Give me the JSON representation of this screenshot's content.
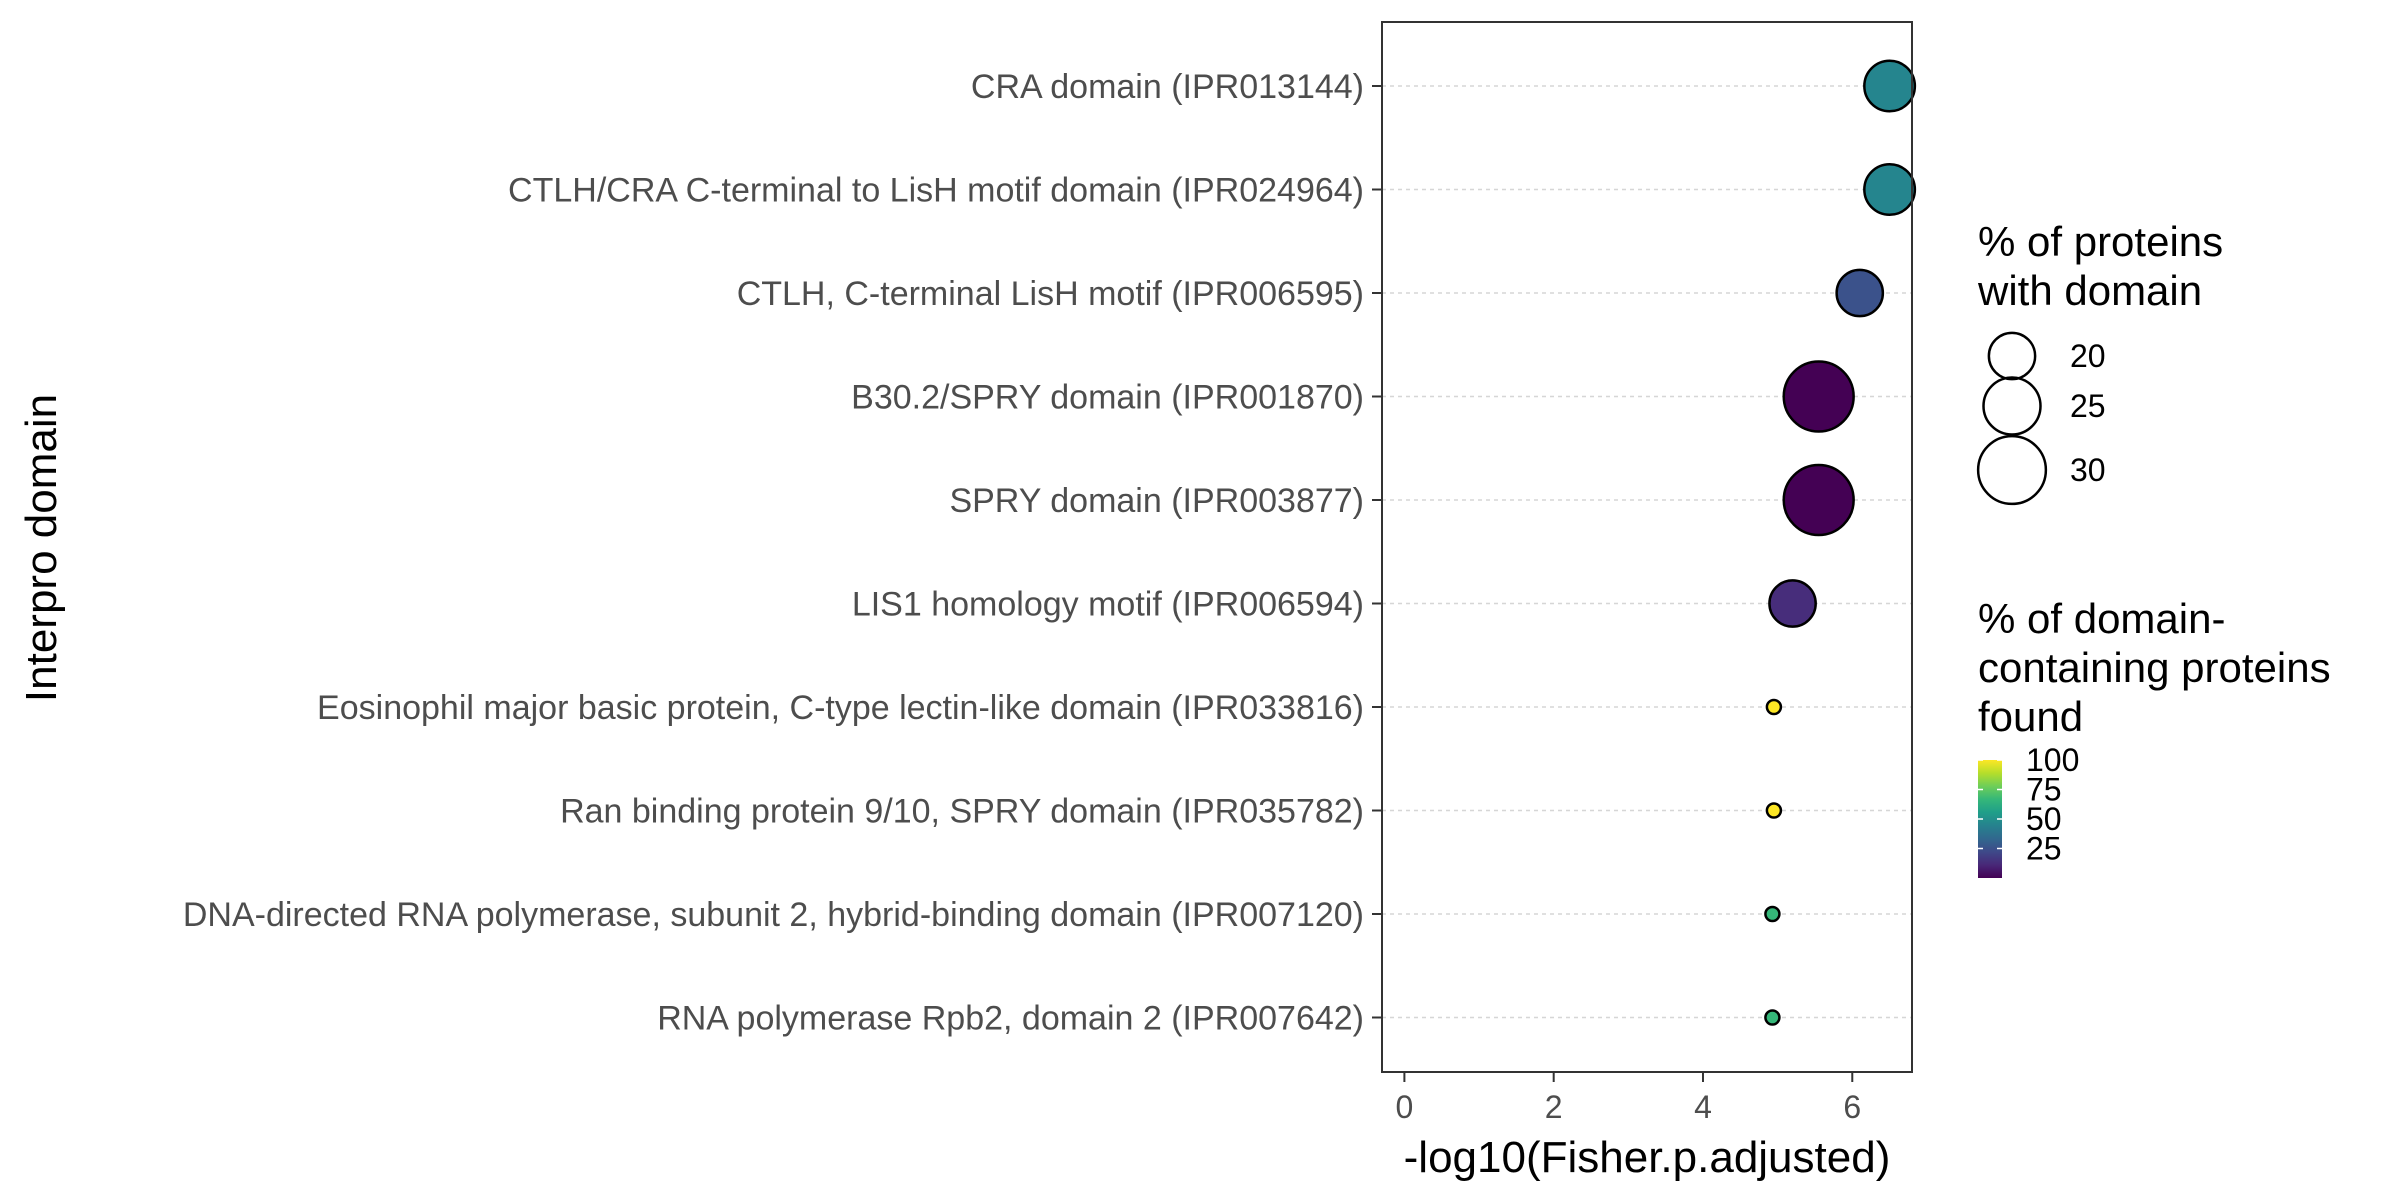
{
  "chart_data": {
    "type": "scatter",
    "xlabel": "-log10(Fisher.p.adjusted)",
    "ylabel": "Interpro domain",
    "xlim": [
      -0.3,
      6.8
    ],
    "xticks": [
      0,
      2,
      4,
      6
    ],
    "grid": "horizontal dashed",
    "categories": [
      "CRA domain (IPR013144)",
      "CTLH/CRA C-terminal to LisH motif domain (IPR024964)",
      "CTLH, C-terminal LisH motif (IPR006595)",
      "B30.2/SPRY domain (IPR001870)",
      "SPRY domain (IPR003877)",
      "LIS1 homology motif (IPR006594)",
      "Eosinophil major basic protein, C-type lectin-like domain (IPR033816)",
      "Ran binding protein 9/10, SPRY domain (IPR035782)",
      "DNA-directed RNA polymerase, subunit 2, hybrid-binding domain (IPR007120)",
      "RNA polymerase Rpb2, domain 2 (IPR007642)"
    ],
    "points": [
      {
        "x": 6.5,
        "size_pct": 22,
        "color_pct": 52,
        "color": "#25858e"
      },
      {
        "x": 6.5,
        "size_pct": 22,
        "color_pct": 52,
        "color": "#25858e"
      },
      {
        "x": 6.1,
        "size_pct": 20,
        "color_pct": 32,
        "color": "#3b528b"
      },
      {
        "x": 5.55,
        "size_pct": 31,
        "color_pct": 5,
        "color": "#440154"
      },
      {
        "x": 5.55,
        "size_pct": 31,
        "color_pct": 5,
        "color": "#440154"
      },
      {
        "x": 5.2,
        "size_pct": 20,
        "color_pct": 12,
        "color": "#472d7b"
      },
      {
        "x": 4.95,
        "size_pct": 5,
        "color_pct": 100,
        "color": "#fde725"
      },
      {
        "x": 4.95,
        "size_pct": 5,
        "color_pct": 100,
        "color": "#fde725"
      },
      {
        "x": 4.93,
        "size_pct": 5,
        "color_pct": 70,
        "color": "#35b779"
      },
      {
        "x": 4.93,
        "size_pct": 5,
        "color_pct": 70,
        "color": "#35b779"
      }
    ],
    "size_legend": {
      "title_lines": [
        "% of proteins",
        "with domain"
      ],
      "values": [
        20,
        25,
        30
      ]
    },
    "color_legend": {
      "title_lines": [
        "% of domain-",
        "containing proteins",
        "found"
      ],
      "values": [
        100,
        75,
        50,
        25
      ],
      "range": [
        0,
        100
      ],
      "colors": [
        "#440154",
        "#482878",
        "#3e4989",
        "#31688e",
        "#26828e",
        "#1f9e89",
        "#35b779",
        "#6ece58",
        "#b5de2b",
        "#fde725"
      ]
    }
  }
}
